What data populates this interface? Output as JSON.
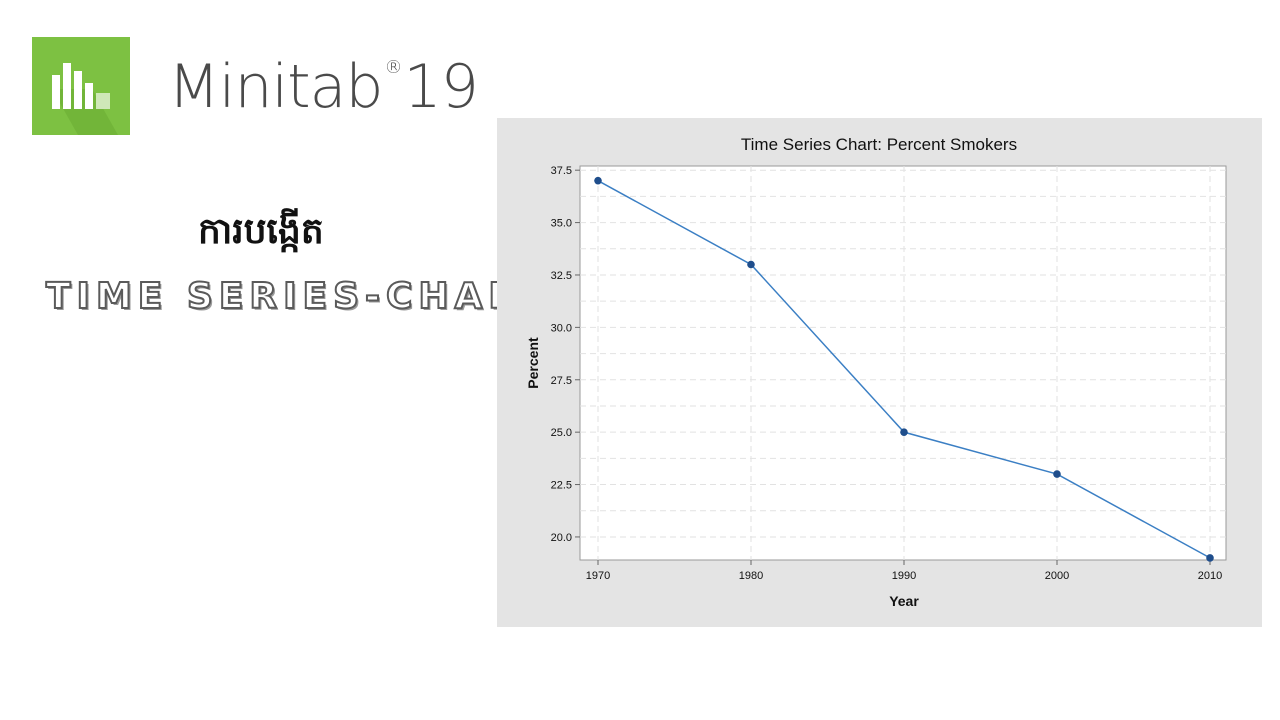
{
  "logo": {
    "icon": "minitab-bar-chart-icon",
    "brand_name": "Minitab",
    "registered_mark": "®",
    "version": "19",
    "tile_color": "#7dc142"
  },
  "heading": {
    "khmer_title": "ការបង្កើត",
    "subtitle": "TIME SERIES-CHART"
  },
  "chart_data": {
    "type": "line",
    "title": "Time Series Chart: Percent Smokers",
    "xlabel": "Year",
    "ylabel": "Percent",
    "x": [
      1970,
      1980,
      1990,
      2000,
      2010
    ],
    "series": [
      {
        "values": [
          37.0,
          33.0,
          25.0,
          23.0,
          19.0
        ],
        "color": "#1f4e8c"
      }
    ],
    "xlim": [
      1970,
      2010
    ],
    "ylim": [
      18.9,
      37.7
    ],
    "yticks": [
      "20.0",
      "22.5",
      "25.0",
      "27.5",
      "30.0",
      "32.5",
      "35.0",
      "37.5"
    ],
    "xticks": [
      "1970",
      "1980",
      "1990",
      "2000",
      "2010"
    ],
    "grid": true,
    "line_color": "#3b7fc4",
    "marker_color": "#1f4e8c"
  }
}
